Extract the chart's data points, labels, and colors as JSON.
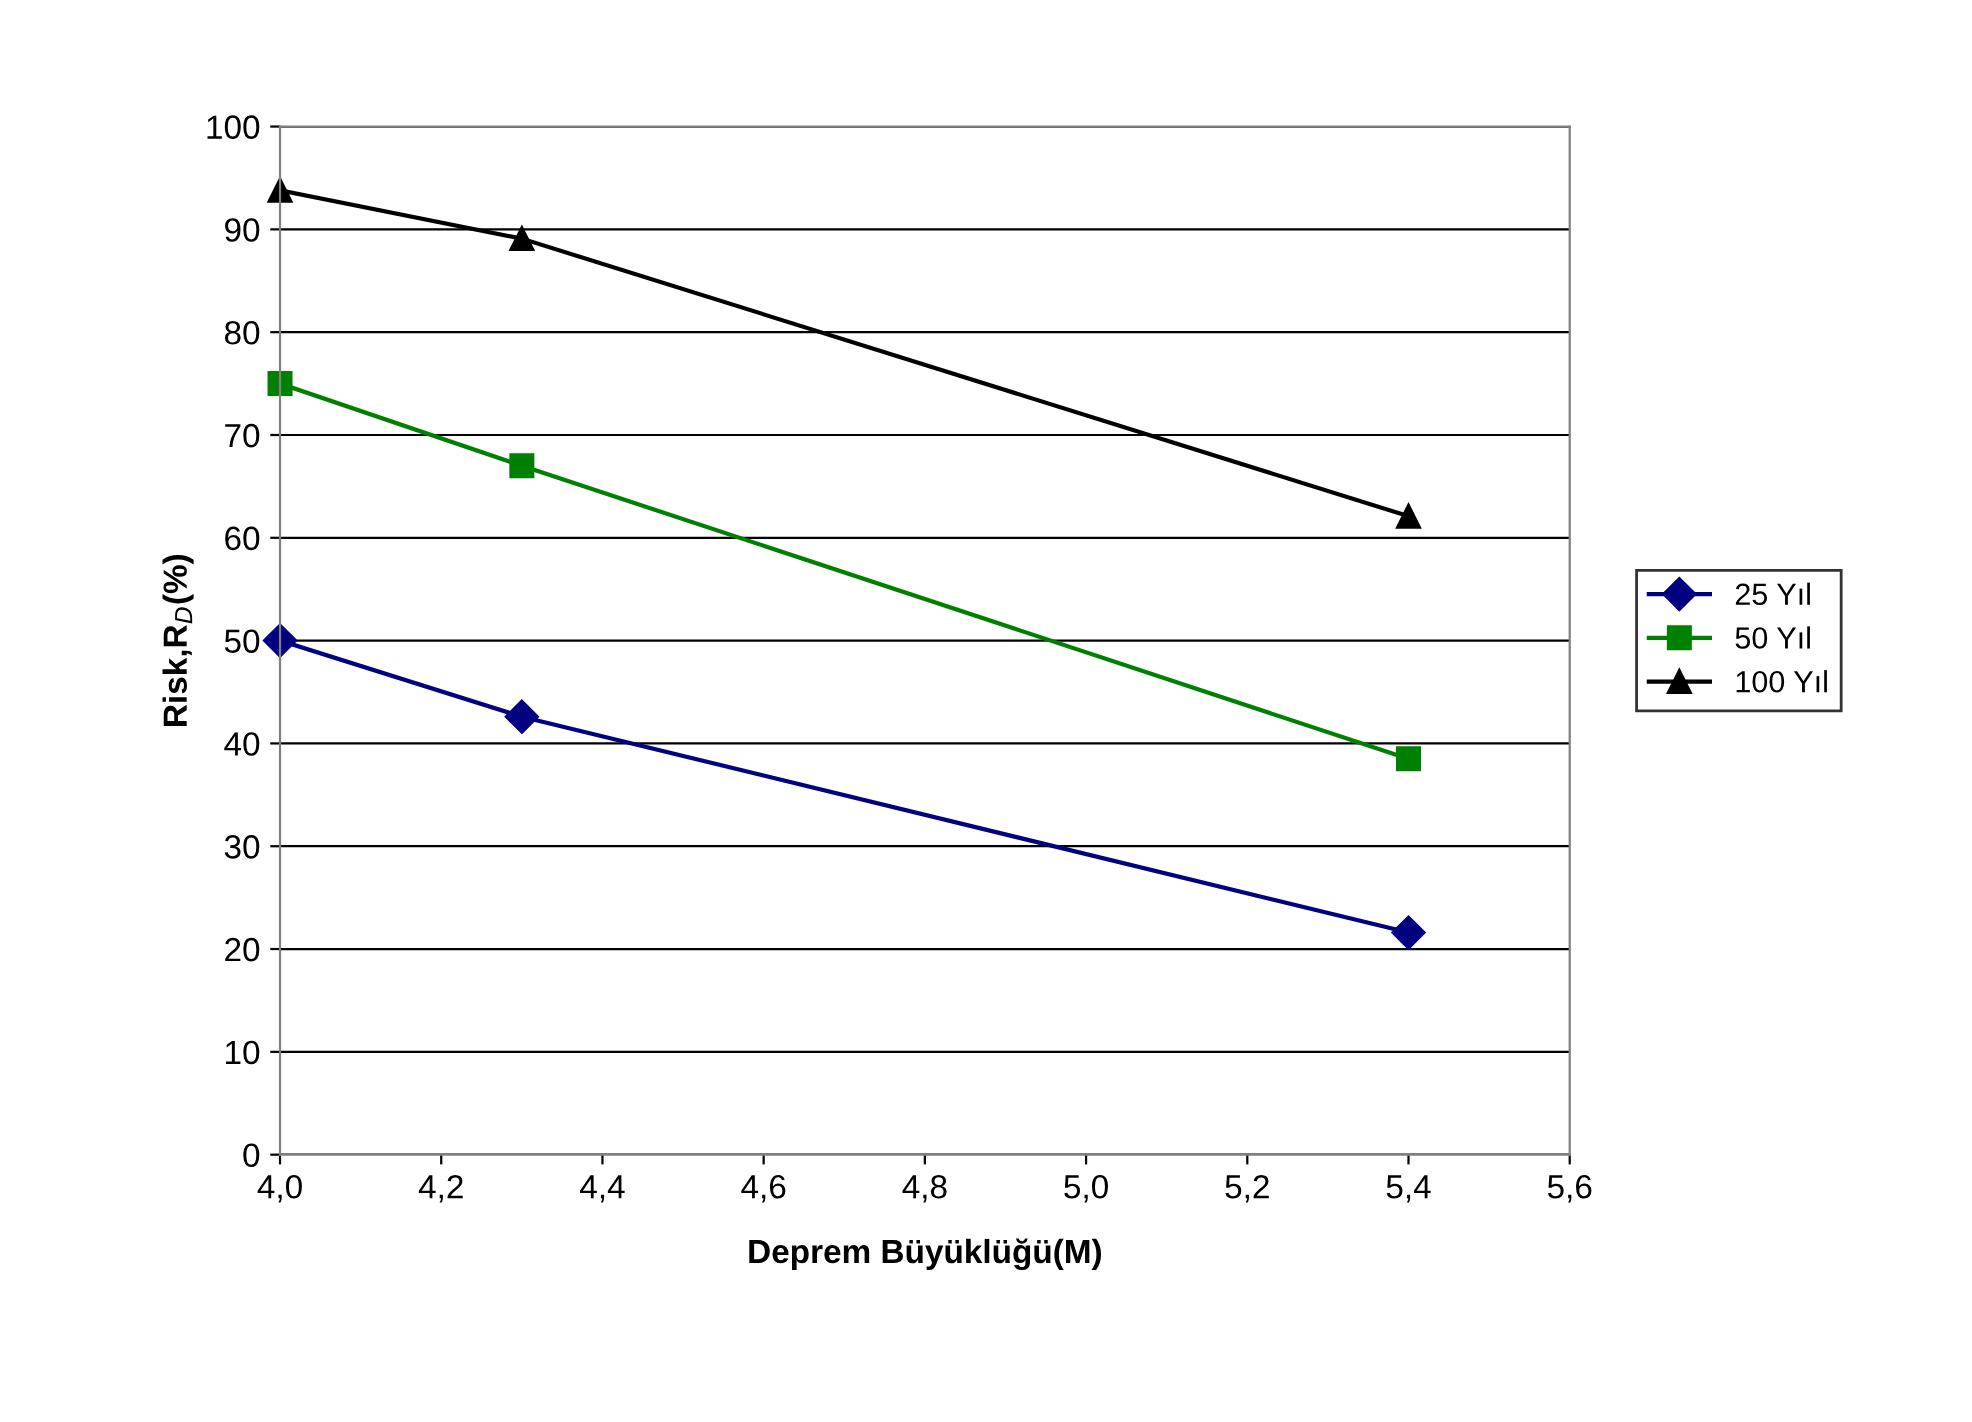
{
  "chart_data": {
    "type": "line",
    "xlabel": "Deprem Büyüklüğü(M)",
    "ylabel": "Risk,R$_{D}$(%)",
    "x": [
      4.0,
      4.3,
      5.4
    ],
    "series": [
      {
        "name": "25 Yıl",
        "color": "#000080",
        "values": [
          50,
          42.6,
          21.6
        ],
        "marker": "diamond"
      },
      {
        "name": "50 Yıl",
        "color": "#008000",
        "values": [
          75,
          67,
          38.5
        ],
        "marker": "square"
      },
      {
        "name": "100 Yıl",
        "color": "#000000",
        "values": [
          93.8,
          89.1,
          62.1
        ],
        "marker": "triangle"
      }
    ],
    "xlim": [
      4.0,
      5.6
    ],
    "xticks": [
      {
        "value": 4.0,
        "label": "4,0"
      },
      {
        "value": 4.2,
        "label": "4,2"
      },
      {
        "value": 4.4,
        "label": "4,4"
      },
      {
        "value": 4.6,
        "label": "4,6"
      },
      {
        "value": 4.8,
        "label": "4,8"
      },
      {
        "value": 5.0,
        "label": "5,0"
      },
      {
        "value": 5.2,
        "label": "5,2"
      },
      {
        "value": 5.4,
        "label": "5,4"
      },
      {
        "value": 5.6,
        "label": "5,6"
      }
    ],
    "ylim": [
      0,
      100
    ],
    "yticks": [
      0,
      10,
      20,
      30,
      40,
      50,
      60,
      70,
      80,
      90,
      100
    ],
    "grid": "y",
    "legend": "right",
    "line_style": "solid"
  }
}
